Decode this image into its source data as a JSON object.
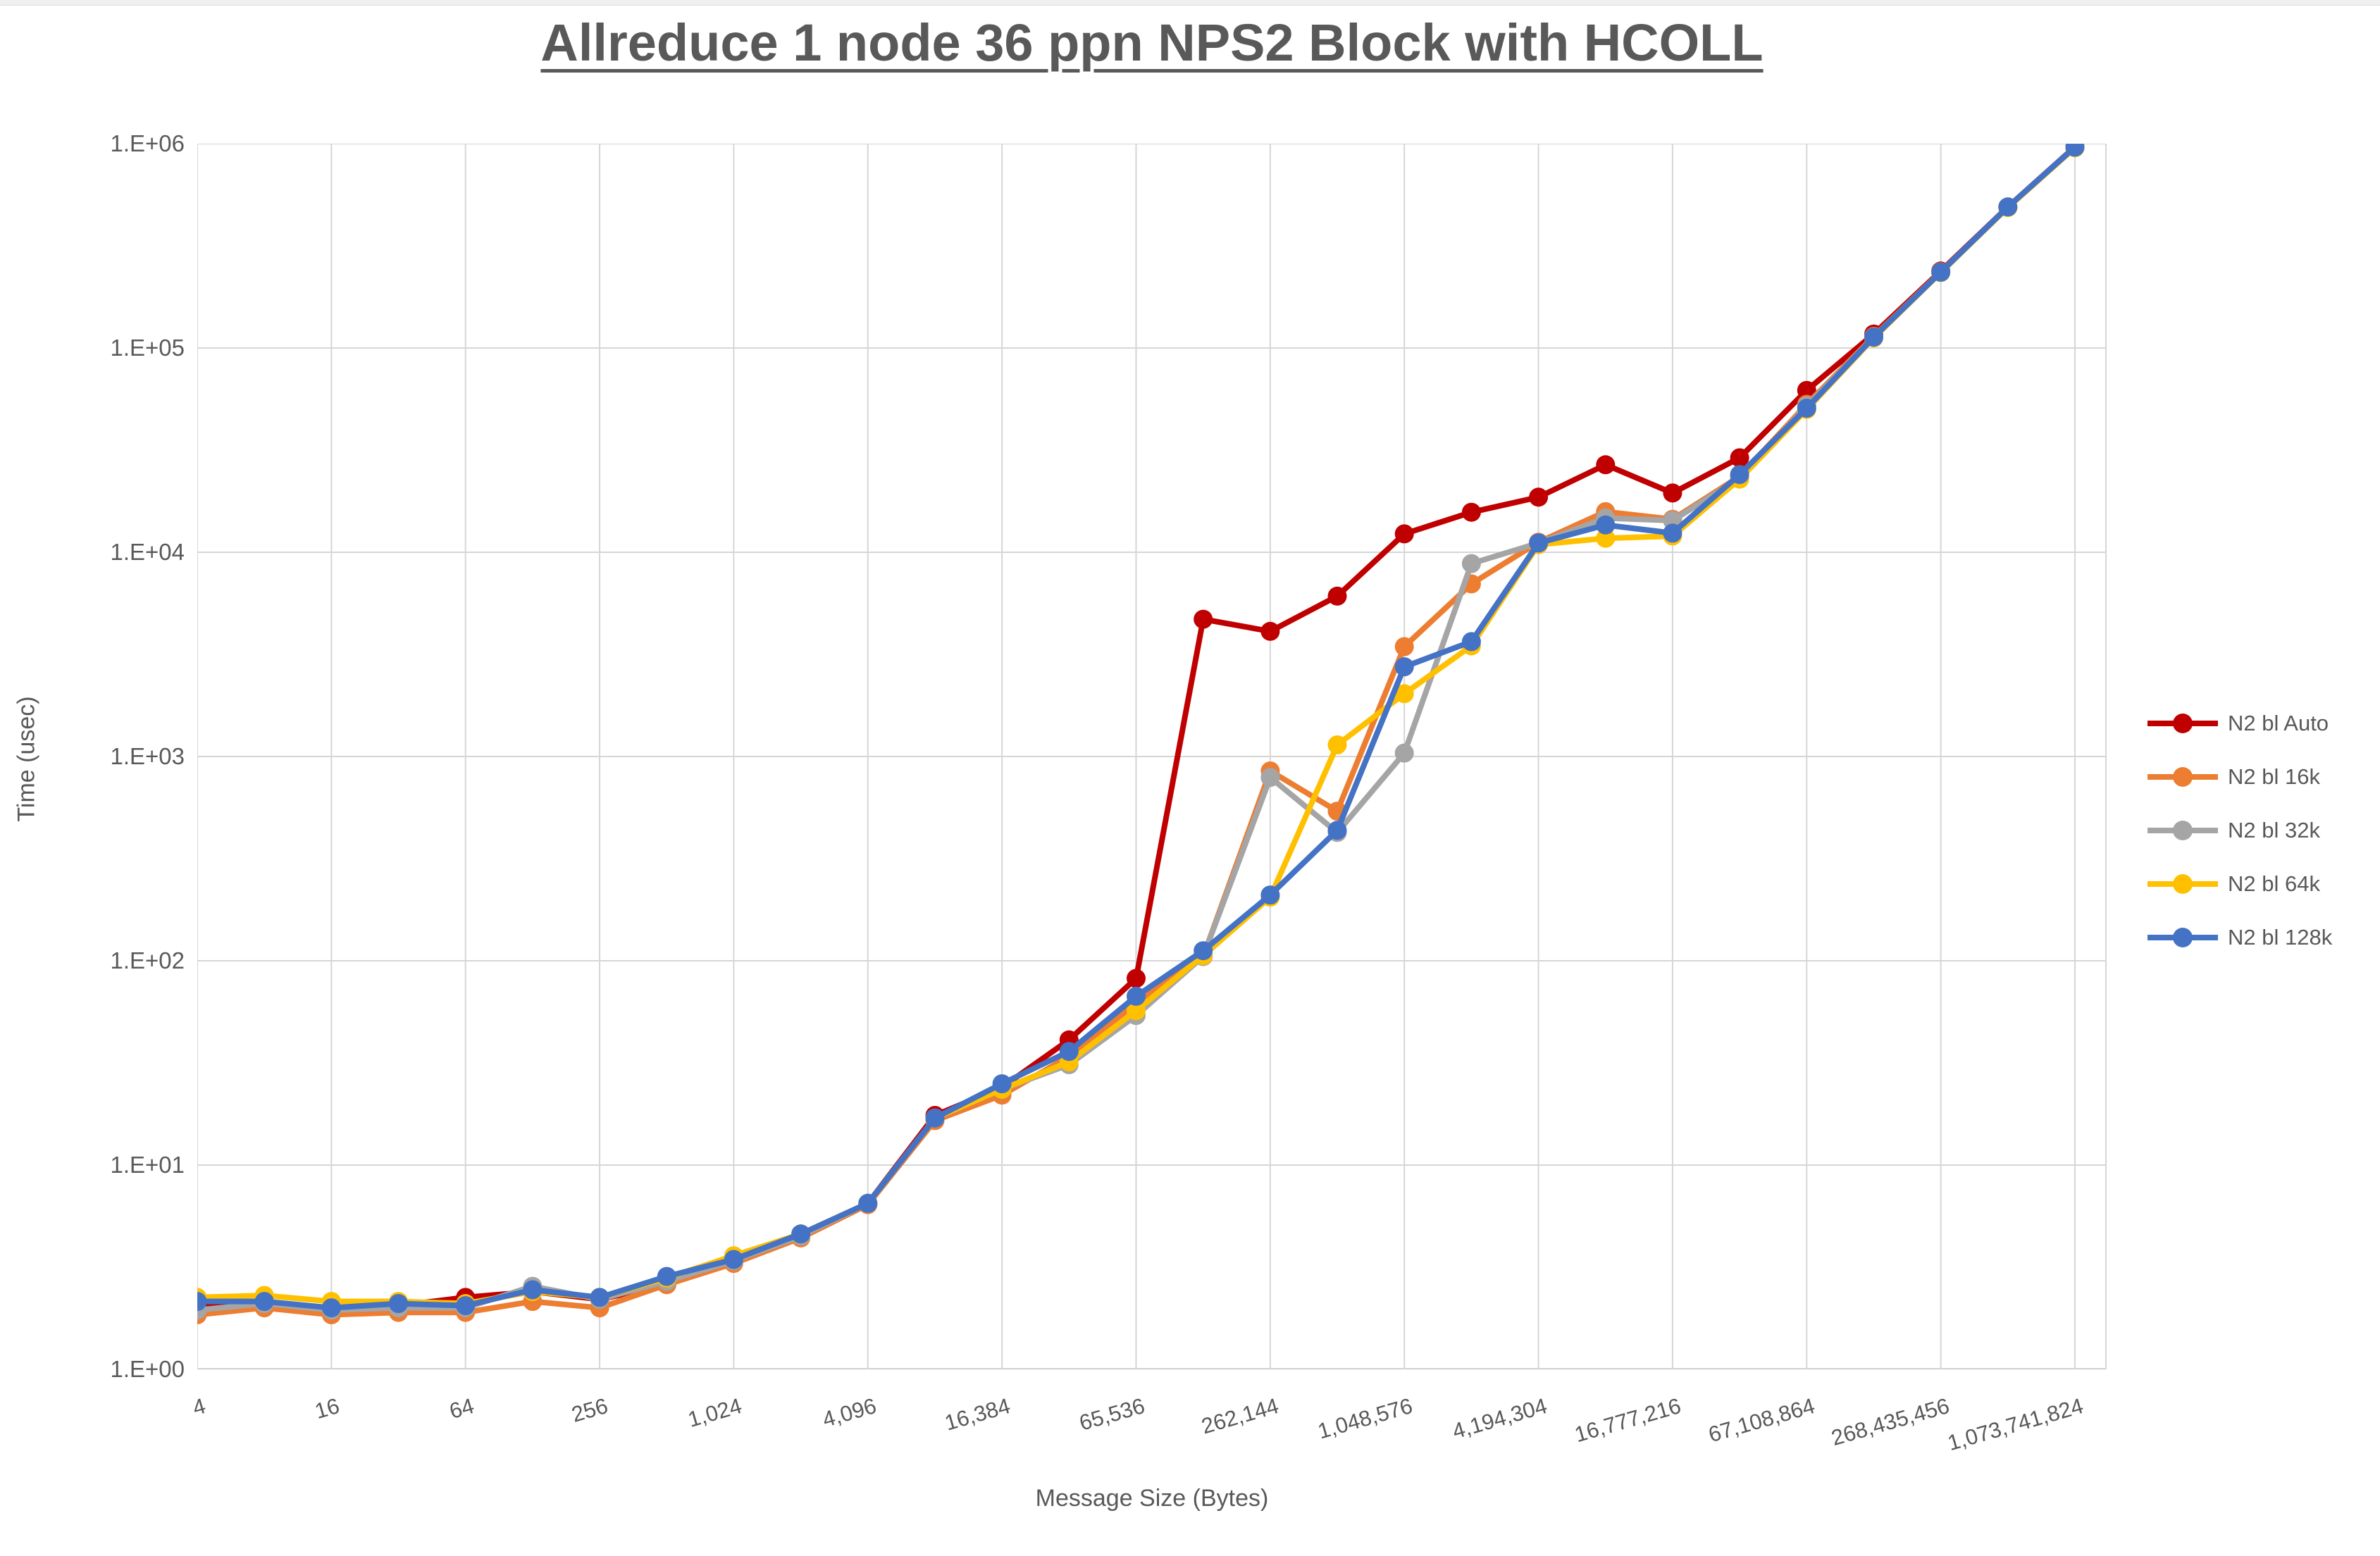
{
  "page": {
    "background": "#FFFFFF"
  },
  "chart_data": {
    "type": "line",
    "title": "Allreduce 1 node 36 ppn NPS2 Block with HCOLL",
    "xlabel": "Message Size (Bytes)",
    "ylabel": "Time (usec)",
    "x_scale": "log2",
    "y_scale": "log10",
    "grid": true,
    "legend_position": "right",
    "y_range": [
      1,
      1000000
    ],
    "y_tick_labels": [
      "1.E+00",
      "1.E+01",
      "1.E+02",
      "1.E+03",
      "1.E+04",
      "1.E+05",
      "1.E+06"
    ],
    "x_tick_labels": [
      "4",
      "16",
      "64",
      "256",
      "1,024",
      "4,096",
      "16,384",
      "65,536",
      "262,144",
      "1,048,576",
      "4,194,304",
      "16,777,216",
      "67,108,864",
      "268,435,456",
      "1,073,741,824"
    ],
    "x_sizes": [
      4,
      8,
      16,
      32,
      64,
      128,
      256,
      512,
      1024,
      2048,
      4096,
      8192,
      16384,
      32768,
      65536,
      131072,
      262144,
      524288,
      1048576,
      2097152,
      4194304,
      8388608,
      16777216,
      33554432,
      67108864,
      134217728,
      268435456,
      536870912,
      1073741824
    ],
    "series": [
      {
        "name": "N2 bl Auto",
        "color": "#C00000",
        "values": [
          2.1,
          2.1,
          2.0,
          2.05,
          2.25,
          2.4,
          2.2,
          2.6,
          3.4,
          4.5,
          6.5,
          17.5,
          24,
          41,
          82,
          4700,
          4100,
          6100,
          12300,
          15700,
          18600,
          26800,
          19500,
          29000,
          62000,
          117000,
          238000,
          490000,
          965000
        ]
      },
      {
        "name": "N2 bl 16k",
        "color": "#ED7D31",
        "values": [
          1.85,
          2.0,
          1.85,
          1.9,
          1.9,
          2.15,
          2.0,
          2.6,
          3.3,
          4.4,
          6.4,
          16.5,
          22,
          34,
          62,
          105,
          850,
          540,
          3450,
          7000,
          11200,
          15800,
          14500,
          23500,
          53000,
          114000,
          236000,
          488000,
          960000
        ]
      },
      {
        "name": "N2 bl 32k",
        "color": "#A5A5A5",
        "values": [
          1.95,
          2.1,
          1.95,
          2.0,
          2.0,
          2.55,
          2.2,
          2.7,
          3.4,
          4.5,
          6.5,
          17,
          23.5,
          31,
          54,
          105,
          790,
          425,
          1040,
          8800,
          11100,
          14700,
          14300,
          23000,
          52000,
          113000,
          235000,
          489000,
          958000
        ]
      },
      {
        "name": "N2 bl 64k",
        "color": "#FFC000",
        "values": [
          2.25,
          2.3,
          2.15,
          2.15,
          2.1,
          2.4,
          2.25,
          2.8,
          3.6,
          4.6,
          6.5,
          17,
          23.5,
          32,
          57,
          106,
          205,
          1140,
          2030,
          3480,
          10900,
          11700,
          12000,
          22800,
          50000,
          112000,
          234000,
          487000,
          955000
        ]
      },
      {
        "name": "N2 bl 128k",
        "color": "#4472C4",
        "values": [
          2.15,
          2.15,
          2.0,
          2.1,
          2.05,
          2.45,
          2.25,
          2.85,
          3.45,
          4.6,
          6.5,
          17,
          25,
          36,
          67,
          112,
          210,
          435,
          2750,
          3650,
          11100,
          13600,
          12400,
          24000,
          50700,
          113000,
          235000,
          490000,
          962000
        ]
      }
    ],
    "style": {
      "gridline_color": "#D6D6D6",
      "axis_line_color": "#BFBFBF",
      "text_color": "#595959",
      "line_width": 8,
      "marker_radius": 13.5
    }
  }
}
